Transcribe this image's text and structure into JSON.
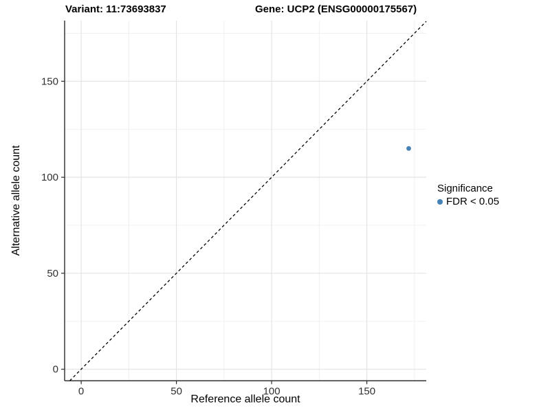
{
  "titles": {
    "variant": "Variant: 11:73693837",
    "gene": "Gene: UCP2 (ENSG00000175567)"
  },
  "chart_data": {
    "type": "scatter",
    "xlabel": "Reference allele count",
    "ylabel": "Alternative allele count",
    "xlim": [
      -8.7,
      181.2
    ],
    "ylim": [
      -6.0,
      181.6
    ],
    "x_ticks": [
      0,
      50,
      100,
      150
    ],
    "y_ticks": [
      0,
      50,
      100,
      150
    ],
    "minor_grid_step": 25,
    "grid": "major+minor",
    "identity_line": {
      "slope": 1,
      "intercept": 0,
      "style": "dashed",
      "color": "#000000"
    },
    "series": [
      {
        "name": "FDR < 0.05",
        "color": "#4682B4",
        "points": [
          {
            "x": 172,
            "y": 115
          }
        ]
      }
    ],
    "legend": {
      "title": "Significance",
      "position": "right",
      "entries": [
        {
          "label": "FDR < 0.05",
          "color": "#4682B4"
        }
      ]
    }
  },
  "style": {
    "background": "#ffffff",
    "grid_major_color": "#e4e4e4",
    "grid_minor_color": "#f0f0f0",
    "axis_color": "#2b2b2b",
    "tick_label_color": "#303030"
  }
}
